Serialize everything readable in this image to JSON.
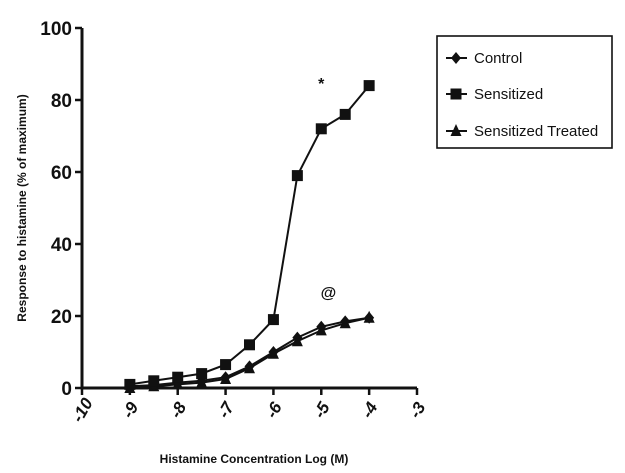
{
  "chart_data": {
    "type": "line",
    "title": "",
    "xlabel": "Histamine Concentration Log (M)",
    "ylabel": "Response to histamine (% of maximum)",
    "xlim": [
      -10,
      -3
    ],
    "ylim": [
      0,
      100
    ],
    "x_ticks": [
      -10,
      -9,
      -8,
      -7,
      -6,
      -5,
      -4,
      -3
    ],
    "x_tick_labels": [
      "-10",
      "-9",
      "-8",
      "-7",
      "-6",
      "-5",
      "-4",
      "-3"
    ],
    "y_ticks": [
      0,
      20,
      40,
      60,
      80,
      100
    ],
    "y_tick_labels": [
      "0",
      "20",
      "40",
      "60",
      "80",
      "100"
    ],
    "grid": false,
    "legend_position": "top-right",
    "series": [
      {
        "name": "Control",
        "marker": "diamond",
        "x": [
          -9,
          -8.5,
          -8,
          -7.5,
          -7,
          -6.5,
          -6,
          -5.5,
          -5,
          -4.5,
          -4
        ],
        "y": [
          0.5,
          0.8,
          1.5,
          2,
          3,
          6,
          10,
          14,
          17,
          18.5,
          19.5
        ]
      },
      {
        "name": "Sensitized",
        "marker": "square",
        "x": [
          -9,
          -8.5,
          -8,
          -7.5,
          -7,
          -6.5,
          -6,
          -5.5,
          -5,
          -4.5,
          -4
        ],
        "y": [
          1,
          2,
          3,
          4,
          6.5,
          12,
          19,
          59,
          72,
          76,
          84
        ]
      },
      {
        "name": "Sensitized Treated",
        "marker": "triangle",
        "x": [
          -9,
          -8.5,
          -8,
          -7.5,
          -7,
          -6.5,
          -6,
          -5.5,
          -5,
          -4.5,
          -4
        ],
        "y": [
          0,
          0.5,
          1,
          1.5,
          2.5,
          5.5,
          9.5,
          13,
          16,
          18,
          19.5
        ]
      }
    ],
    "annotations": [
      {
        "text": "*",
        "x": -5.0,
        "y": 83
      },
      {
        "text": "@",
        "x": -4.85,
        "y": 25
      }
    ]
  }
}
